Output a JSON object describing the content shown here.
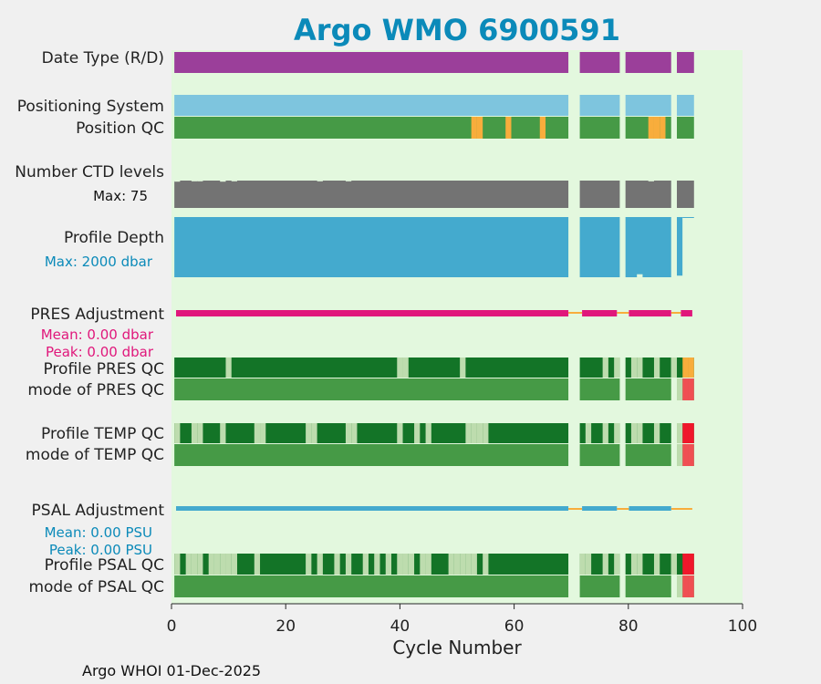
{
  "chart_data": {
    "type": "timeline",
    "title": "Argo WMO 6900591",
    "xlabel": "Cycle Number",
    "xlim": [
      0,
      100
    ],
    "xticks": [
      0,
      20,
      40,
      60,
      80,
      100
    ],
    "footer": "Argo WHOI 01-Dec-2025",
    "rows": [
      {
        "name": "Date Type (R/D)",
        "color": "#9b3f9a",
        "segments": [
          [
            0.5,
            69.5
          ],
          [
            71.5,
            78.5
          ],
          [
            79.5,
            87.5
          ],
          [
            88.5,
            91.5
          ]
        ]
      },
      {
        "name": "Positioning System",
        "color": "#7ec5de",
        "segments": [
          [
            0.5,
            69.5
          ],
          [
            71.5,
            78.5
          ],
          [
            79.5,
            87.5
          ],
          [
            88.5,
            91.5
          ]
        ]
      },
      {
        "name": "Position QC",
        "color": "#469a46",
        "flag_color": "#f8ad3c",
        "segments": [
          [
            0.5,
            69.5
          ],
          [
            71.5,
            78.5
          ],
          [
            79.5,
            87.5
          ],
          [
            88.5,
            91.5
          ]
        ],
        "flags": [
          53,
          54,
          59,
          65,
          84,
          85,
          86
        ]
      },
      {
        "name": "Number CTD levels",
        "color": "#737373",
        "stat_label": "Max: 75",
        "max_levels": 75,
        "segments": [
          [
            0.5,
            69.5
          ],
          [
            71.5,
            78.5
          ],
          [
            79.5,
            87.5
          ],
          [
            88.5,
            91.5
          ]
        ],
        "reduced": [
          [
            1,
            72
          ],
          [
            4,
            73
          ],
          [
            5,
            73
          ],
          [
            9,
            72
          ],
          [
            11,
            73
          ],
          [
            26,
            73
          ],
          [
            31,
            73
          ],
          [
            84,
            73
          ]
        ]
      },
      {
        "name": "Profile Depth",
        "color": "#44aace",
        "stat_label": "Max: 2000 dbar",
        "max_depth": 2000,
        "segments": [
          [
            0.5,
            69.5
          ],
          [
            71.5,
            78.5
          ],
          [
            79.5,
            87.5
          ]
        ],
        "partial": [
          [
            88.5,
            89.5,
            1950
          ],
          [
            89.5,
            91.5,
            30
          ],
          [
            81.5,
            82.5,
            1900
          ]
        ]
      },
      {
        "name": "PRES Adjustment",
        "color": "#e0177b",
        "gap_color": "#f8ad3c",
        "stats": [
          "Mean: 0.00 dbar",
          "Peak: 0.00 dbar"
        ],
        "segments": [
          [
            0.8,
            69.5
          ],
          [
            71.9,
            78.0
          ],
          [
            80.1,
            87.5
          ],
          [
            89.2,
            91.2
          ]
        ],
        "gaps": [
          [
            69.5,
            71.9
          ],
          [
            78.0,
            80.1
          ],
          [
            87.5,
            89.2
          ]
        ]
      },
      {
        "name": "Profile PRES QC",
        "color": "#137427",
        "light_color": "#bddcae",
        "segments": [
          [
            0.5,
            69.5
          ],
          [
            71.5,
            78.5
          ],
          [
            79.5,
            87.5
          ],
          [
            88.5,
            91.5
          ]
        ],
        "light": [
          10,
          40,
          41,
          51,
          76,
          78,
          81,
          82,
          85,
          88
        ],
        "flag_color": "#f8ad3c",
        "flags": [
          90,
          91
        ]
      },
      {
        "name": "mode of PRES QC",
        "color": "#469a46",
        "bad_color": "#f04f53",
        "segments": [
          [
            0.5,
            69.5
          ],
          [
            71.5,
            78.5
          ],
          [
            79.5,
            87.5
          ],
          [
            88.5,
            91.5
          ]
        ],
        "light_color": "#bddcae",
        "light": [
          89
        ],
        "bad": [
          90,
          91
        ]
      },
      {
        "name": "Profile TEMP QC",
        "color": "#137427",
        "light_color": "#bddcae",
        "segments": [
          [
            0.5,
            69.5
          ],
          [
            71.5,
            78.5
          ],
          [
            79.5,
            87.5
          ],
          [
            88.5,
            91.5
          ]
        ],
        "light": [
          1,
          4,
          5,
          9,
          15,
          16,
          24,
          25,
          31,
          32,
          40,
          43,
          45,
          52,
          53,
          54,
          55,
          73,
          76,
          78,
          81,
          82,
          85,
          89
        ],
        "bad_color": "#f0172b",
        "bad": [
          90,
          91
        ]
      },
      {
        "name": "mode of TEMP QC",
        "color": "#469a46",
        "bad_color": "#f04f53",
        "segments": [
          [
            0.5,
            69.5
          ],
          [
            71.5,
            78.5
          ],
          [
            79.5,
            87.5
          ],
          [
            88.5,
            91.5
          ]
        ],
        "light_color": "#bddcae",
        "light": [
          89
        ],
        "bad": [
          90,
          91
        ]
      },
      {
        "name": "PSAL Adjustment",
        "color": "#44aace",
        "gap_color": "#f8ad3c",
        "stats": [
          "Mean: 0.00 PSU",
          "Peak: 0.00 PSU"
        ],
        "segments": [
          [
            0.8,
            69.5
          ],
          [
            71.9,
            78.0
          ],
          [
            80.1,
            87.5
          ]
        ],
        "gaps": [
          [
            69.5,
            71.9
          ],
          [
            78.0,
            80.1
          ],
          [
            87.5,
            91.2
          ]
        ]
      },
      {
        "name": "Profile PSAL QC",
        "color": "#137427",
        "light_color": "#bddcae",
        "segments": [
          [
            0.5,
            69.5
          ],
          [
            71.5,
            78.5
          ],
          [
            79.5,
            87.5
          ],
          [
            88.5,
            91.5
          ]
        ],
        "light": [
          1,
          3,
          4,
          5,
          7,
          8,
          9,
          10,
          11,
          15,
          24,
          26,
          29,
          31,
          34,
          36,
          38,
          40,
          41,
          42,
          44,
          45,
          49,
          50,
          51,
          52,
          53,
          55,
          72,
          73,
          76,
          78,
          81,
          82,
          85,
          88
        ],
        "bad_color": "#f0172b",
        "bad": [
          90,
          91
        ]
      },
      {
        "name": "mode of PSAL QC",
        "color": "#469a46",
        "bad_color": "#f04f53",
        "segments": [
          [
            0.5,
            69.5
          ],
          [
            71.5,
            78.5
          ],
          [
            79.5,
            87.5
          ],
          [
            88.5,
            91.5
          ]
        ],
        "light_color": "#bddcae",
        "light": [
          89
        ],
        "bad": [
          90,
          91
        ]
      }
    ],
    "colors": {
      "title": "#0b8ab9",
      "plot_background": "#e3f8de",
      "figure_background": "#f0f0f0",
      "pres_stats": "#e0177b",
      "psal_stats": "#0b8ab9",
      "depth_stats": "#0b8ab9"
    }
  }
}
